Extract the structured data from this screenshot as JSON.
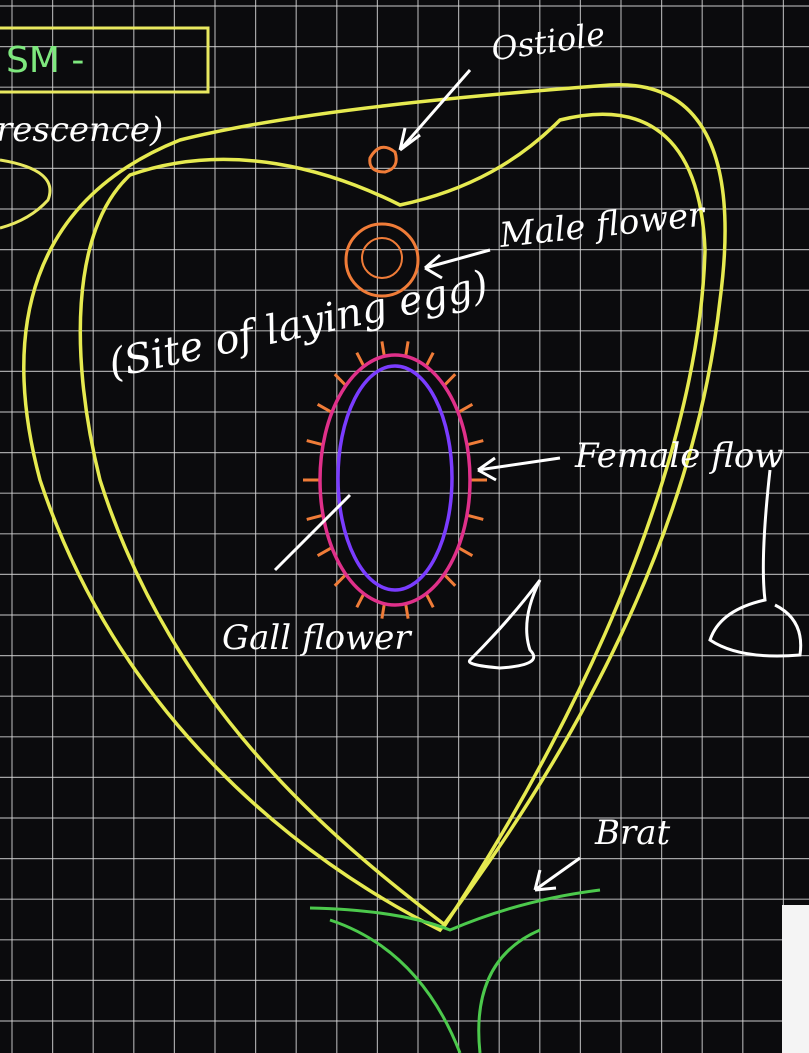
{
  "board": {
    "heading": "SM -",
    "partial_text": "rescence)"
  },
  "labels": {
    "ostiole": "Ostiole",
    "male_flower": "Male flower",
    "egg_site": "(Site of laying egg)",
    "female_flower": "Female flow",
    "gall_flower": "Gall flower",
    "bract": "Brat"
  }
}
